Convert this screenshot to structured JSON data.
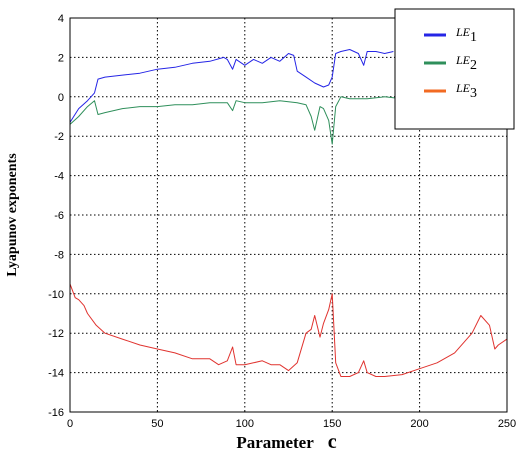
{
  "chart_data": {
    "type": "line",
    "xlabel": "Parameter c",
    "ylabel": "Lyapunov exponents",
    "xlim": [
      0,
      250
    ],
    "ylim": [
      -16,
      4
    ],
    "xticks": [
      0,
      50,
      100,
      150,
      200,
      250
    ],
    "yticks": [
      4,
      2,
      0,
      -2,
      -4,
      -6,
      -8,
      -10,
      -12,
      -14,
      -16
    ],
    "grid": true,
    "legend_position": "top-right",
    "series": [
      {
        "name": "LE1",
        "label_main": "LE",
        "label_sub": "1",
        "color": "#2525e6",
        "x": [
          0,
          5,
          10,
          14,
          16,
          20,
          30,
          40,
          50,
          60,
          70,
          80,
          88,
          90,
          93,
          95,
          100,
          105,
          110,
          115,
          120,
          125,
          128,
          130,
          135,
          140,
          145,
          148,
          150,
          152,
          155,
          160,
          165,
          168,
          170,
          175,
          180,
          185
        ],
        "y": [
          -1.3,
          -0.6,
          -0.2,
          0.2,
          0.9,
          1.0,
          1.1,
          1.2,
          1.4,
          1.5,
          1.7,
          1.8,
          2.0,
          1.9,
          1.4,
          1.9,
          1.6,
          1.9,
          1.7,
          2.0,
          1.8,
          2.2,
          2.1,
          1.3,
          1.0,
          0.7,
          0.5,
          0.6,
          1.0,
          2.2,
          2.3,
          2.4,
          2.2,
          1.6,
          2.3,
          2.3,
          2.2,
          2.3
        ]
      },
      {
        "name": "LE2",
        "label_main": "LE",
        "label_sub": "2",
        "color": "#2f8f5b",
        "x": [
          0,
          5,
          10,
          14,
          16,
          20,
          30,
          40,
          50,
          60,
          70,
          80,
          90,
          93,
          95,
          100,
          110,
          120,
          130,
          135,
          138,
          140,
          143,
          145,
          148,
          150,
          152,
          155,
          160,
          170,
          180,
          190,
          200
        ],
        "y": [
          -1.4,
          -1.0,
          -0.5,
          -0.2,
          -0.9,
          -0.8,
          -0.6,
          -0.5,
          -0.5,
          -0.4,
          -0.4,
          -0.3,
          -0.3,
          -0.7,
          -0.2,
          -0.3,
          -0.3,
          -0.2,
          -0.3,
          -0.4,
          -1.0,
          -1.7,
          -0.5,
          -0.6,
          -1.2,
          -2.4,
          -0.5,
          0.0,
          -0.1,
          -0.1,
          0.0,
          -0.1,
          0.0
        ]
      },
      {
        "name": "LE3",
        "label_main": "LE",
        "label_sub": "3",
        "color": "#e0332f",
        "legend_color": "#f26a22",
        "x": [
          0,
          3,
          5,
          8,
          10,
          15,
          20,
          30,
          40,
          50,
          60,
          70,
          80,
          85,
          90,
          93,
          95,
          100,
          105,
          110,
          115,
          120,
          125,
          130,
          135,
          138,
          140,
          143,
          145,
          148,
          150,
          152,
          155,
          160,
          165,
          168,
          170,
          175,
          180,
          190,
          200,
          210,
          220,
          230,
          235,
          240,
          243,
          245,
          250
        ],
        "y": [
          -9.5,
          -10.2,
          -10.3,
          -10.6,
          -11.0,
          -11.6,
          -12.0,
          -12.3,
          -12.6,
          -12.8,
          -13.0,
          -13.3,
          -13.3,
          -13.6,
          -13.4,
          -12.7,
          -13.6,
          -13.6,
          -13.5,
          -13.4,
          -13.6,
          -13.6,
          -13.9,
          -13.5,
          -12.0,
          -11.8,
          -11.1,
          -12.2,
          -11.5,
          -10.8,
          -10.0,
          -13.5,
          -14.2,
          -14.2,
          -14.0,
          -13.4,
          -14.0,
          -14.2,
          -14.2,
          -14.1,
          -13.8,
          -13.5,
          -13.0,
          -12.0,
          -11.1,
          -11.6,
          -12.8,
          -12.6,
          -12.3
        ]
      }
    ]
  }
}
